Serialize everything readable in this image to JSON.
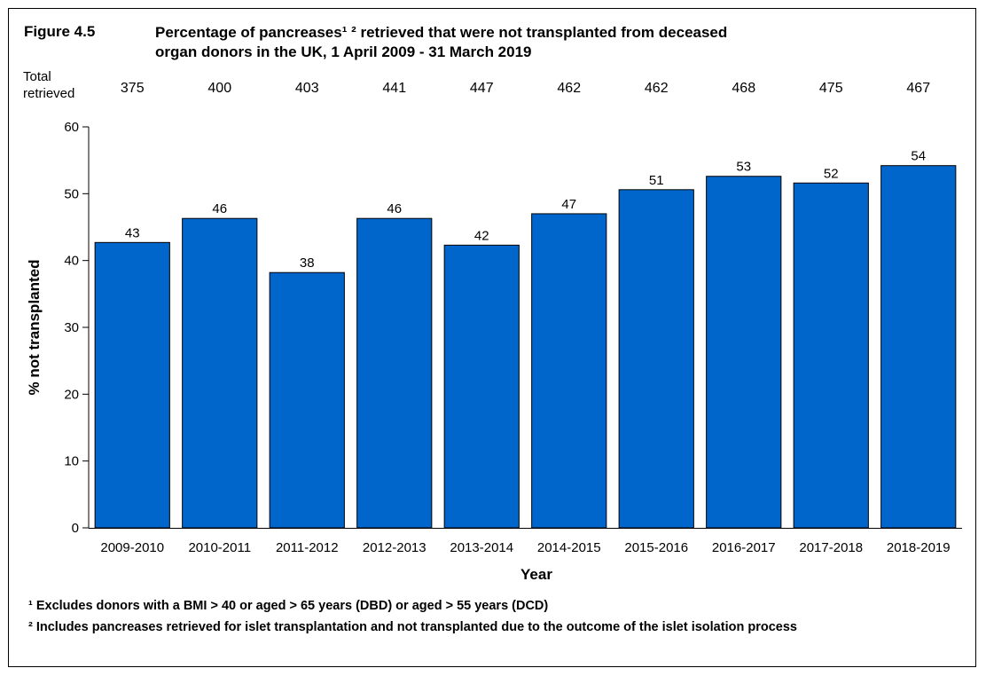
{
  "figure": {
    "label": "Figure 4.5",
    "title": "Percentage of pancreases¹ ² retrieved that were not transplanted from deceased\norgan donors in the UK, 1 April 2009 - 31 March 2019"
  },
  "totals": {
    "label": "Total\nretrieved",
    "values": [
      "375",
      "400",
      "403",
      "441",
      "447",
      "462",
      "462",
      "468",
      "475",
      "467"
    ]
  },
  "footnotes": {
    "note1": "¹ Excludes donors with a BMI > 40 or aged > 65 years (DBD) or aged > 55 years (DCD)",
    "note2": "² Includes pancreases retrieved for islet transplantation and not transplanted due to the outcome of the islet isolation process"
  },
  "colors": {
    "bar": "#0066CC",
    "bar_stroke": "#000000"
  },
  "chart_data": {
    "type": "bar",
    "title": "Percentage of pancreases¹ ² retrieved that were not transplanted from deceased organ donors in the UK, 1 April 2009 - 31 March 2019",
    "xlabel": "Year",
    "ylabel": "% not transplanted",
    "categories": [
      "2009-2010",
      "2010-2011",
      "2011-2012",
      "2012-2013",
      "2013-2014",
      "2014-2015",
      "2015-2016",
      "2016-2017",
      "2017-2018",
      "2018-2019"
    ],
    "values": [
      42.7,
      46.3,
      38.2,
      46.3,
      42.3,
      47.0,
      50.6,
      52.6,
      51.6,
      54.2
    ],
    "data_labels": [
      "43",
      "46",
      "38",
      "46",
      "42",
      "47",
      "51",
      "53",
      "52",
      "54"
    ],
    "ylim": [
      0,
      60
    ],
    "yticks": [
      0,
      10,
      20,
      30,
      40,
      50,
      60
    ],
    "grid": false,
    "legend": "none"
  }
}
